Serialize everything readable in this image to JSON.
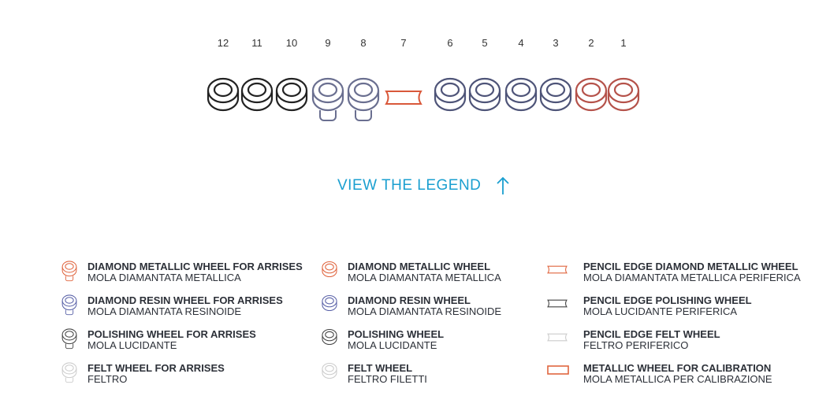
{
  "wheels": [
    {
      "n": "12",
      "color": "#222222"
    },
    {
      "n": "11",
      "color": "#222222"
    },
    {
      "n": "10",
      "color": "#222222"
    },
    {
      "n": "9",
      "color": "#6a6f90",
      "shank": true
    },
    {
      "n": "8",
      "color": "#6a6f90",
      "shank": true
    },
    {
      "n": "7",
      "color": "#d9583a",
      "pencil": true
    },
    {
      "n": "6",
      "color": "#4e5478"
    },
    {
      "n": "5",
      "color": "#4e5478"
    },
    {
      "n": "4",
      "color": "#4e5478"
    },
    {
      "n": "3",
      "color": "#4e5478"
    },
    {
      "n": "2",
      "color": "#b5524a"
    },
    {
      "n": "1",
      "color": "#b5524a"
    }
  ],
  "legend_button": {
    "label": "VIEW THE LEGEND",
    "icon": "arrow-up-icon",
    "color": "#1a9fd0"
  },
  "legend": [
    {
      "title": "DIAMOND METALLIC WHEEL FOR  ARRISES",
      "sub": "MOLA DIAMANTATA METALLICA",
      "icon": "arris-wheel",
      "color": "#e0653f"
    },
    {
      "title": "DIAMOND RESIN WHEEL FOR ARRISES",
      "sub": "MOLA DIAMANTATA RESINOIDE",
      "icon": "arris-wheel",
      "color": "#5a62a8"
    },
    {
      "title": "POLISHING WHEEL FOR ARRISES",
      "sub": "MOLA LUCIDANTE",
      "icon": "arris-wheel",
      "color": "#444444"
    },
    {
      "title": "FELT WHEEL FOR ARRISES",
      "sub": "FELTRO",
      "icon": "arris-wheel",
      "color": "#cccccc"
    },
    {
      "title": "DIAMOND METALLIC WHEEL",
      "sub": "MOLA DIAMANTATA METALLICA",
      "icon": "wheel",
      "color": "#e0653f"
    },
    {
      "title": "DIAMOND RESIN WHEEL",
      "sub": "MOLA DIAMANTATA RESINOIDE",
      "icon": "wheel",
      "color": "#5a62a8"
    },
    {
      "title": "POLISHING WHEEL",
      "sub": "MOLA LUCIDANTE",
      "icon": "wheel",
      "color": "#444444"
    },
    {
      "title": "FELT WHEEL",
      "sub": "FELTRO FILETTI",
      "icon": "wheel",
      "color": "#cccccc"
    },
    {
      "title": "PENCIL EDGE DIAMOND METALLIC WHEEL",
      "sub": "MOLA DIAMANTATA METALLICA PERIFERICA",
      "icon": "pencil-wheel",
      "color": "#e0653f"
    },
    {
      "title": "PENCIL EDGE POLISHING WHEEL",
      "sub": "MOLA LUCIDANTE PERIFERICA",
      "icon": "pencil-wheel",
      "color": "#444444"
    },
    {
      "title": "PENCIL EDGE FELT WHEEL",
      "sub": "FELTRO PERIFERICO",
      "icon": "pencil-wheel",
      "color": "#cccccc"
    },
    {
      "title": "METALLIC WHEEL FOR CALIBRATION",
      "sub": "MOLA METALLICA PER CALIBRAZIONE",
      "icon": "calibration-wheel",
      "color": "#e0653f"
    }
  ]
}
